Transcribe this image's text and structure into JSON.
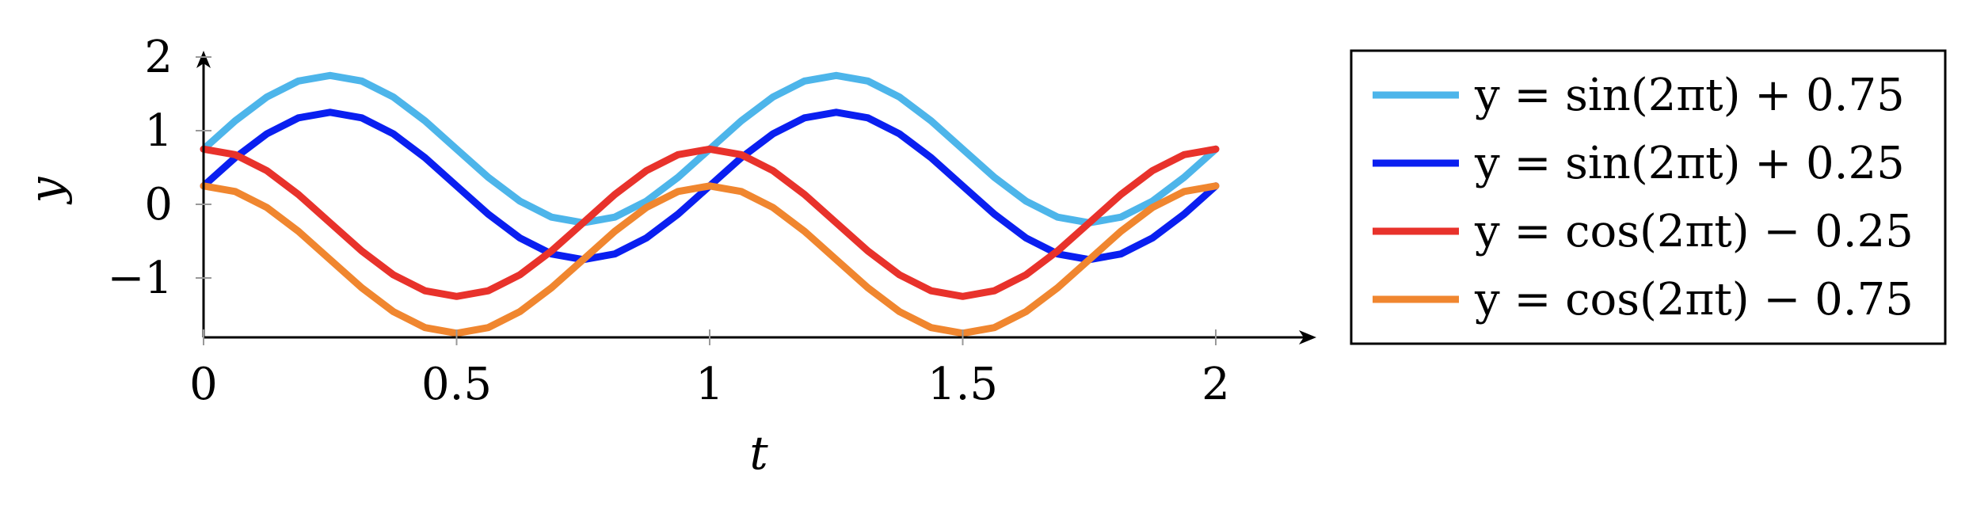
{
  "chart_data": {
    "type": "line",
    "xlabel": "t",
    "ylabel": "y",
    "xlim": [
      0,
      2
    ],
    "ylim": [
      -1.75,
      2
    ],
    "x_ticks": [
      0,
      0.5,
      1,
      1.5,
      2
    ],
    "x_tick_labels": [
      "0",
      "0.5",
      "1",
      "1.5",
      "2"
    ],
    "y_ticks": [
      -1,
      0,
      1,
      2
    ],
    "y_tick_labels": [
      "−1",
      "0",
      "1",
      "2"
    ],
    "legend_position": "right",
    "grid": false,
    "x": [
      0,
      0.0625,
      0.125,
      0.1875,
      0.25,
      0.3125,
      0.375,
      0.4375,
      0.5,
      0.5625,
      0.625,
      0.6875,
      0.75,
      0.8125,
      0.875,
      0.9375,
      1,
      1.0625,
      1.125,
      1.1875,
      1.25,
      1.3125,
      1.375,
      1.4375,
      1.5,
      1.5625,
      1.625,
      1.6875,
      1.75,
      1.8125,
      1.875,
      1.9375,
      2
    ],
    "series": [
      {
        "name": "y = sin(2πt) + 0.75",
        "color": "#4db5ea",
        "values": [
          0.75,
          1.133,
          1.457,
          1.674,
          1.75,
          1.674,
          1.457,
          1.133,
          0.75,
          0.367,
          0.043,
          -0.174,
          -0.25,
          -0.174,
          0.043,
          0.367,
          0.75,
          1.133,
          1.457,
          1.674,
          1.75,
          1.674,
          1.457,
          1.133,
          0.75,
          0.367,
          0.043,
          -0.174,
          -0.25,
          -0.174,
          0.043,
          0.367,
          0.75
        ]
      },
      {
        "name": "y = sin(2πt) + 0.25",
        "color": "#0a1ff0",
        "values": [
          0.25,
          0.633,
          0.957,
          1.174,
          1.25,
          1.174,
          0.957,
          0.633,
          0.25,
          -0.133,
          -0.457,
          -0.674,
          -0.75,
          -0.674,
          -0.457,
          -0.133,
          0.25,
          0.633,
          0.957,
          1.174,
          1.25,
          1.174,
          0.957,
          0.633,
          0.25,
          -0.133,
          -0.457,
          -0.674,
          -0.75,
          -0.674,
          -0.457,
          -0.133,
          0.25
        ]
      },
      {
        "name": "y = cos(2πt) − 0.25",
        "color": "#e8322b",
        "values": [
          0.75,
          0.674,
          0.457,
          0.133,
          -0.25,
          -0.633,
          -0.957,
          -1.174,
          -1.25,
          -1.174,
          -0.957,
          -0.633,
          -0.25,
          0.133,
          0.457,
          0.674,
          0.75,
          0.674,
          0.457,
          0.133,
          -0.25,
          -0.633,
          -0.957,
          -1.174,
          -1.25,
          -1.174,
          -0.957,
          -0.633,
          -0.25,
          0.133,
          0.457,
          0.674,
          0.75
        ]
      },
      {
        "name": "y = cos(2πt) − 0.75",
        "color": "#f0862f",
        "values": [
          0.25,
          0.174,
          -0.043,
          -0.367,
          -0.75,
          -1.133,
          -1.457,
          -1.674,
          -1.75,
          -1.674,
          -1.457,
          -1.133,
          -0.75,
          -0.367,
          -0.043,
          0.174,
          0.25,
          0.174,
          -0.043,
          -0.367,
          -0.75,
          -1.133,
          -1.457,
          -1.674,
          -1.75,
          -1.674,
          -1.457,
          -1.133,
          -0.75,
          -0.367,
          -0.043,
          0.174,
          0.25
        ]
      }
    ]
  }
}
